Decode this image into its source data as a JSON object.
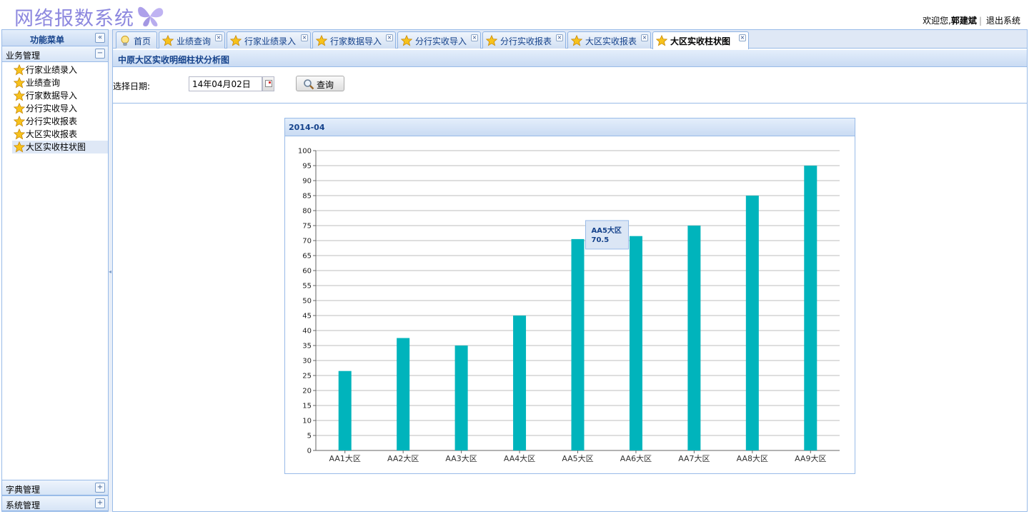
{
  "header": {
    "app_title": "网络报数系统",
    "welcome": "欢迎您,",
    "user_name": "郭建斌",
    "logout": "退出系统"
  },
  "sidebar": {
    "title": "功能菜单",
    "collapse_icon": "«",
    "groups": [
      {
        "label": "业务管理",
        "state": "−",
        "items": [
          "行家业绩录入",
          "业绩查询",
          "行家数据导入",
          "分行实收导入",
          "分行实收报表",
          "大区实收报表",
          "大区实收柱状图"
        ],
        "selected": 6
      },
      {
        "label": "字典管理",
        "state": "+"
      },
      {
        "label": "系统管理",
        "state": "+"
      }
    ]
  },
  "tabs": [
    {
      "label": "首页",
      "icon": "lightbulb-icon",
      "closable": false
    },
    {
      "label": "业绩查询",
      "icon": "star-icon",
      "closable": true
    },
    {
      "label": "行家业绩录入",
      "icon": "star-icon",
      "closable": true
    },
    {
      "label": "行家数据导入",
      "icon": "star-icon",
      "closable": true
    },
    {
      "label": "分行实收导入",
      "icon": "star-icon",
      "closable": true
    },
    {
      "label": "分行实收报表",
      "icon": "star-icon",
      "closable": true
    },
    {
      "label": "大区实收报表",
      "icon": "star-icon",
      "closable": true
    },
    {
      "label": "大区实收柱状图",
      "icon": "star-icon",
      "closable": true,
      "active": true
    }
  ],
  "content": {
    "title": "中原大区实收明细柱状分析图",
    "date_label": "选择日期:",
    "date_value": "14年04月02日",
    "query_label": "查询"
  },
  "chart_data": {
    "type": "bar",
    "title": "2014-04",
    "categories": [
      "AA1大区",
      "AA2大区",
      "AA3大区",
      "AA4大区",
      "AA5大区",
      "AA6大区",
      "AA7大区",
      "AA8大区",
      "AA9大区"
    ],
    "values": [
      26.5,
      37.5,
      35,
      45,
      70.5,
      71.5,
      75,
      85,
      95
    ],
    "ylim": [
      0,
      100
    ],
    "ytick_step": 5,
    "grid": true,
    "bar_color": "#00b4bc",
    "tooltip": {
      "category": "AA5大区",
      "value": "70.5"
    }
  }
}
